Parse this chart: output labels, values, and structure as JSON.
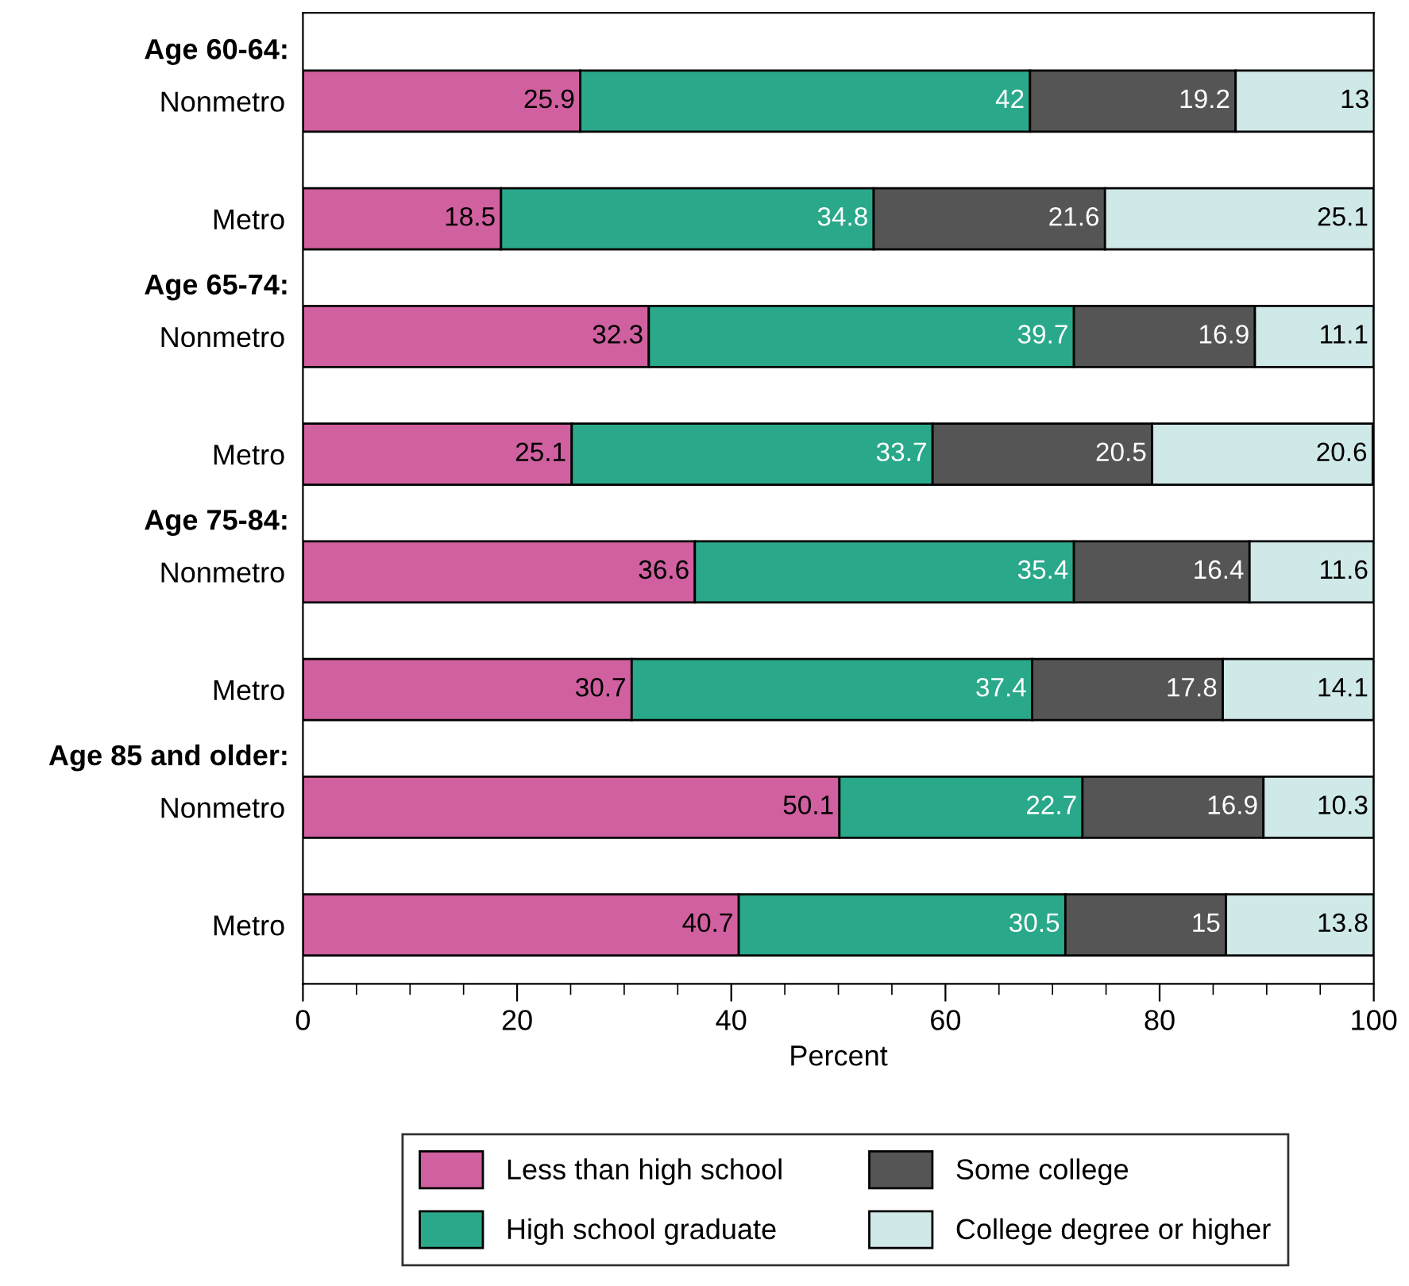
{
  "chart_data": {
    "type": "bar",
    "orientation": "horizontal",
    "stacked": true,
    "xlabel": "Percent",
    "categories": [
      "Nonmetro",
      "Metro",
      "Nonmetro",
      "Metro",
      "Nonmetro",
      "Metro",
      "Nonmetro",
      "Metro"
    ],
    "annotations": [
      "Age 60-64:",
      "Age 65-74:",
      "Age 75-84:",
      "Age 85 and older:"
    ],
    "series": [
      {
        "name": "Less than high school",
        "color": "#d0609f",
        "values": [
          25.9,
          18.5,
          32.3,
          25.1,
          36.6,
          30.7,
          50.1,
          40.7
        ]
      },
      {
        "name": "High school graduate",
        "color": "#2aa88a",
        "values": [
          42,
          34.8,
          39.7,
          33.7,
          35.4,
          37.4,
          22.7,
          30.5
        ]
      },
      {
        "name": "Some college",
        "color": "#555555",
        "values": [
          19.2,
          21.6,
          16.9,
          20.5,
          16.4,
          17.8,
          16.9,
          15
        ]
      },
      {
        "name": "College degree or higher",
        "color": "#cfe8e8",
        "values": [
          13,
          25.1,
          11.1,
          20.6,
          11.6,
          14.1,
          10.3,
          13.8
        ]
      }
    ],
    "xlim": [
      0,
      100
    ],
    "xticks": [
      0,
      20,
      40,
      60,
      80,
      100
    ],
    "data_labels": true,
    "grid": false,
    "legend": "bottom"
  }
}
